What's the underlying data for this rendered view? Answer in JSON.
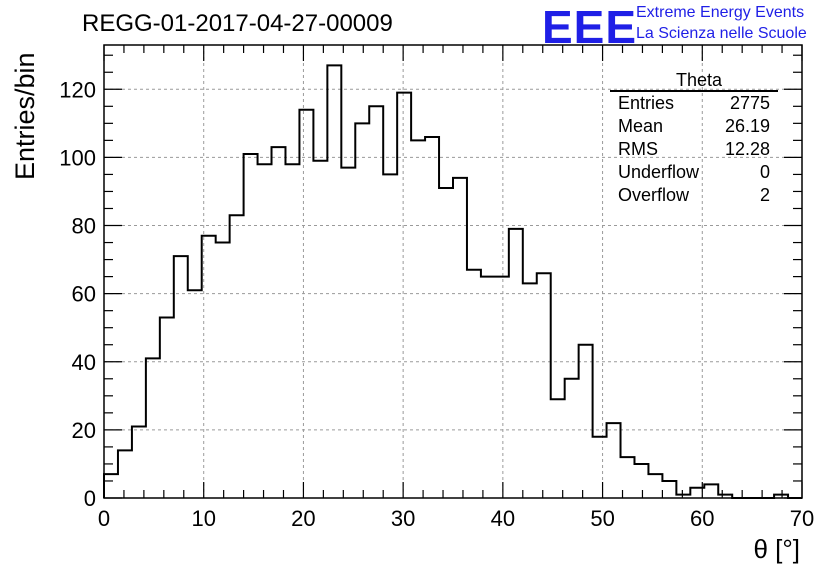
{
  "title": "REGG-01-2017-04-27-00009",
  "logo": {
    "mark": "EEE",
    "line1": "Extreme Energy Events",
    "line2": "La Scienza nelle Scuole",
    "color": "#1f1fe6"
  },
  "stats": {
    "title": "Theta",
    "rows": [
      {
        "label": "Entries",
        "value": "2775"
      },
      {
        "label": "Mean",
        "value": "26.19"
      },
      {
        "label": "RMS",
        "value": "12.28"
      },
      {
        "label": "Underflow",
        "value": "0"
      },
      {
        "label": "Overflow",
        "value": "2"
      }
    ]
  },
  "chart_data": {
    "type": "bar",
    "style": "step-histogram",
    "title": "REGG-01-2017-04-27-00009",
    "xlabel": "θ [°]",
    "ylabel": "Entries/bin",
    "xlim": [
      0,
      70
    ],
    "ylim": [
      0,
      133
    ],
    "bin_width": 1.4,
    "x_ticks": [
      0,
      10,
      20,
      30,
      40,
      50,
      60,
      70
    ],
    "y_ticks": [
      0,
      20,
      40,
      60,
      80,
      100,
      120
    ],
    "grid": true,
    "values": [
      7,
      14,
      21,
      41,
      53,
      71,
      61,
      77,
      75,
      83,
      101,
      98,
      103,
      98,
      114,
      99,
      127,
      97,
      110,
      115,
      95,
      119,
      105,
      106,
      91,
      94,
      67,
      65,
      65,
      79,
      63,
      66,
      29,
      35,
      45,
      18,
      22,
      12,
      10,
      7,
      5,
      1,
      3,
      4,
      1,
      0,
      0,
      0,
      1,
      0
    ]
  }
}
